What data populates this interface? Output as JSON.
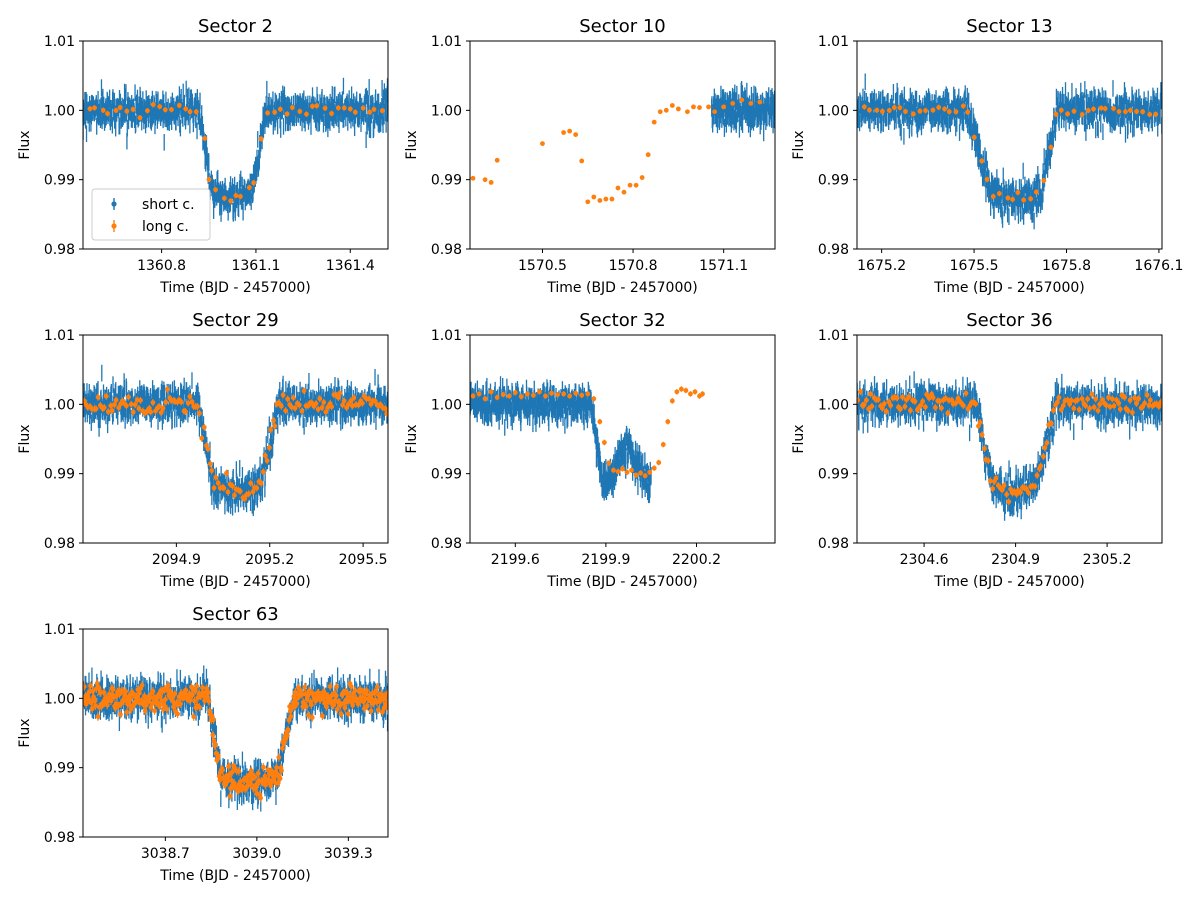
{
  "figure": {
    "shared_xlabel": "Time (BJD - 2457000)",
    "shared_ylabel": "Flux"
  },
  "colors": {
    "short": "#1f77b4",
    "long": "#ff7f0e"
  },
  "legend": {
    "placement": "lower-left",
    "panel": 0,
    "entries": [
      "short c.",
      "long c."
    ]
  },
  "chart_data": [
    {
      "type": "scatter",
      "title": "Sector 2",
      "xlabel": "Time (BJD - 2457000)",
      "ylabel": "Flux",
      "xlim": [
        1360.55,
        1361.52
      ],
      "ylim": [
        0.98,
        1.01
      ],
      "xticks": [
        1360.8,
        1361.1,
        1361.4
      ],
      "xtick_labels": [
        "1360.8",
        "1361.1",
        "1361.4"
      ],
      "yticks": [
        0.98,
        0.99,
        1.0,
        1.01
      ],
      "ytick_labels": [
        "0.98",
        "0.99",
        "1.00",
        "1.01"
      ],
      "transit": {
        "ingress": [
          1360.92,
          1360.96
        ],
        "egress": [
          1361.09,
          1361.13
        ],
        "depth": 0.0115,
        "hump": 0
      },
      "series": [
        {
          "name": "short c.",
          "kind": "short",
          "range": [
            1360.55,
            1361.52
          ],
          "n": 900,
          "scatter": 0.0011,
          "err": 0.0012
        },
        {
          "name": "long c.",
          "kind": "long",
          "range": [
            1360.56,
            1361.51
          ],
          "n": 47,
          "scatter": 0.0004,
          "err": 0.0004
        }
      ]
    },
    {
      "type": "scatter",
      "title": "Sector 10",
      "xlabel": "Time (BJD - 2457000)",
      "ylabel": "Flux",
      "xlim": [
        1570.26,
        1571.27
      ],
      "ylim": [
        0.98,
        1.01
      ],
      "xticks": [
        1570.5,
        1570.8,
        1571.1
      ],
      "xtick_labels": [
        "1570.5",
        "1570.8",
        "1571.1"
      ],
      "yticks": [
        0.98,
        0.99,
        1.0,
        1.01
      ],
      "ytick_labels": [
        "0.98",
        "0.99",
        "1.00",
        "1.01"
      ],
      "transit": null,
      "series": [
        {
          "name": "short c.",
          "kind": "short",
          "range": [
            1571.06,
            1571.27
          ],
          "n": 220,
          "scatter": 0.0012,
          "err": 0.0013
        },
        {
          "name": "long c.",
          "kind": "long",
          "err": 0.0003,
          "points": [
            [
              1570.27,
              0.9902
            ],
            [
              1570.31,
              0.99
            ],
            [
              1570.33,
              0.9896
            ],
            [
              1570.35,
              0.9928
            ],
            [
              1570.5,
              0.9952
            ],
            [
              1570.57,
              0.9968
            ],
            [
              1570.59,
              0.997
            ],
            [
              1570.61,
              0.9965
            ],
            [
              1570.63,
              0.9927
            ],
            [
              1570.65,
              0.9868
            ],
            [
              1570.67,
              0.9875
            ],
            [
              1570.69,
              0.987
            ],
            [
              1570.71,
              0.9872
            ],
            [
              1570.73,
              0.9872
            ],
            [
              1570.75,
              0.9888
            ],
            [
              1570.77,
              0.9882
            ],
            [
              1570.79,
              0.9892
            ],
            [
              1570.81,
              0.9892
            ],
            [
              1570.83,
              0.9903
            ],
            [
              1570.85,
              0.9936
            ],
            [
              1570.87,
              0.9983
            ],
            [
              1570.89,
              0.9998
            ],
            [
              1570.91,
              1.0
            ],
            [
              1570.93,
              1.0007
            ],
            [
              1570.95,
              1.0002
            ],
            [
              1570.98,
              0.9998
            ],
            [
              1571.0,
              1.0005
            ],
            [
              1571.02,
              1.0004
            ],
            [
              1571.05,
              1.0005
            ],
            [
              1571.07,
              0.9998
            ],
            [
              1571.1,
              1.0005
            ],
            [
              1571.13,
              1.001
            ],
            [
              1571.16,
              1.0015
            ],
            [
              1571.19,
              1.001
            ],
            [
              1571.22,
              1.0012
            ]
          ]
        }
      ]
    },
    {
      "type": "scatter",
      "title": "Sector 13",
      "xlabel": "Time (BJD - 2457000)",
      "ylabel": "Flux",
      "xlim": [
        1675.12,
        1676.11
      ],
      "ylim": [
        0.98,
        1.01
      ],
      "xticks": [
        1675.2,
        1675.5,
        1675.8,
        1676.1
      ],
      "xtick_labels": [
        "1675.2",
        "1675.5",
        "1675.8",
        "1676.1"
      ],
      "yticks": [
        0.98,
        0.99,
        1.0,
        1.01
      ],
      "ytick_labels": [
        "0.98",
        "0.99",
        "1.00",
        "1.01"
      ],
      "transit": {
        "ingress": [
          1675.48,
          1675.55
        ],
        "egress": [
          1675.72,
          1675.77
        ],
        "depth": 0.0115,
        "hump": 0
      },
      "series": [
        {
          "name": "short c.",
          "kind": "short",
          "range": [
            1675.12,
            1676.11
          ],
          "n": 900,
          "scatter": 0.0012,
          "err": 0.0012
        },
        {
          "name": "long c.",
          "kind": "long",
          "range": [
            1675.13,
            1676.1
          ],
          "n": 48,
          "scatter": 0.0004,
          "err": 0.0004
        }
      ]
    },
    {
      "type": "scatter",
      "title": "Sector 29",
      "xlabel": "Time (BJD - 2457000)",
      "ylabel": "Flux",
      "xlim": [
        2094.6,
        2095.58
      ],
      "ylim": [
        0.98,
        1.01
      ],
      "xticks": [
        2094.9,
        2095.2,
        2095.5
      ],
      "xtick_labels": [
        "2094.9",
        "2095.2",
        "2095.5"
      ],
      "yticks": [
        0.98,
        0.99,
        1.0,
        1.01
      ],
      "ytick_labels": [
        "0.98",
        "0.99",
        "1.00",
        "1.01"
      ],
      "transit": {
        "ingress": [
          2094.97,
          2095.02
        ],
        "egress": [
          2095.17,
          2095.23
        ],
        "depth": 0.0115,
        "hump": 0
      },
      "series": [
        {
          "name": "short c.",
          "kind": "short",
          "range": [
            2094.6,
            2095.58
          ],
          "n": 900,
          "scatter": 0.0012,
          "err": 0.0012
        },
        {
          "name": "long c.",
          "kind": "long",
          "range": [
            2094.6,
            2095.58
          ],
          "n": 150,
          "scatter": 0.0007,
          "err": 0.0005
        }
      ]
    },
    {
      "type": "scatter",
      "title": "Sector 32",
      "xlabel": "Time (BJD - 2457000)",
      "ylabel": "Flux",
      "xlim": [
        2199.45,
        2200.46
      ],
      "ylim": [
        0.98,
        1.01
      ],
      "xticks": [
        2199.6,
        2199.9,
        2200.2
      ],
      "xtick_labels": [
        "2199.6",
        "2199.9",
        "2200.2"
      ],
      "yticks": [
        0.98,
        0.99,
        1.0,
        1.01
      ],
      "ytick_labels": [
        "0.98",
        "0.99",
        "1.00",
        "1.01"
      ],
      "transit": {
        "ingress": [
          2199.85,
          2199.89
        ],
        "egress": [
          2200.05,
          2200.1
        ],
        "depth": 0.0115,
        "hump": 0.007
      },
      "series": [
        {
          "name": "short c.",
          "kind": "short",
          "range": [
            2199.45,
            2200.05
          ],
          "n": 650,
          "scatter": 0.0011,
          "err": 0.0012
        },
        {
          "name": "long c.",
          "kind": "long",
          "err": 0.0004,
          "points": [
            [
              2199.46,
              1.0012
            ],
            [
              2199.48,
              1.0015
            ],
            [
              2199.5,
              1.0008
            ],
            [
              2199.52,
              1.0018
            ],
            [
              2199.54,
              1.001
            ],
            [
              2199.56,
              1.0014
            ],
            [
              2199.58,
              1.0012
            ],
            [
              2199.6,
              1.0017
            ],
            [
              2199.62,
              1.0011
            ],
            [
              2199.64,
              1.0015
            ],
            [
              2199.66,
              1.0013
            ],
            [
              2199.68,
              1.0018
            ],
            [
              2199.7,
              1.0012
            ],
            [
              2199.72,
              1.0016
            ],
            [
              2199.74,
              1.0014
            ],
            [
              2199.76,
              1.0015
            ],
            [
              2199.78,
              1.0012
            ],
            [
              2199.8,
              1.0016
            ],
            [
              2199.82,
              1.0013
            ],
            [
              2199.84,
              1.0015
            ],
            [
              2199.86,
              1.0008
            ],
            [
              2199.88,
              0.9975
            ],
            [
              2199.895,
              0.9945
            ],
            [
              2199.91,
              0.9915
            ],
            [
              2199.925,
              0.9905
            ],
            [
              2199.94,
              0.9903
            ],
            [
              2199.955,
              0.9907
            ],
            [
              2199.97,
              0.9902
            ],
            [
              2199.985,
              0.9905
            ],
            [
              2200.0,
              0.9898
            ],
            [
              2200.015,
              0.9901
            ],
            [
              2200.03,
              0.9897
            ],
            [
              2200.045,
              0.9902
            ],
            [
              2200.06,
              0.9908
            ],
            [
              2200.075,
              0.9916
            ],
            [
              2200.09,
              0.9942
            ],
            [
              2200.105,
              0.9975
            ],
            [
              2200.12,
              1.0005
            ],
            [
              2200.135,
              1.0018
            ],
            [
              2200.15,
              1.0022
            ],
            [
              2200.165,
              1.002
            ],
            [
              2200.18,
              1.0015
            ],
            [
              2200.195,
              1.0018
            ],
            [
              2200.21,
              1.0012
            ],
            [
              2200.22,
              1.0015
            ]
          ]
        }
      ]
    },
    {
      "type": "scatter",
      "title": "Sector 36",
      "xlabel": "Time (BJD - 2457000)",
      "ylabel": "Flux",
      "xlim": [
        2304.38,
        2305.38
      ],
      "ylim": [
        0.98,
        1.01
      ],
      "xticks": [
        2304.6,
        2304.9,
        2305.2
      ],
      "xtick_labels": [
        "2304.6",
        "2304.9",
        "2305.2"
      ],
      "yticks": [
        0.98,
        0.99,
        1.0,
        1.01
      ],
      "ytick_labels": [
        "0.98",
        "0.99",
        "1.00",
        "1.01"
      ],
      "transit": {
        "ingress": [
          2304.77,
          2304.82
        ],
        "egress": [
          2304.97,
          2305.03
        ],
        "depth": 0.0115,
        "hump": 0
      },
      "series": [
        {
          "name": "short c.",
          "kind": "short",
          "range": [
            2304.38,
            2305.38
          ],
          "n": 900,
          "scatter": 0.0012,
          "err": 0.0012
        },
        {
          "name": "long c.",
          "kind": "long",
          "range": [
            2304.38,
            2305.38
          ],
          "n": 150,
          "scatter": 0.0007,
          "err": 0.0005
        }
      ]
    },
    {
      "type": "scatter",
      "title": "Sector 63",
      "xlabel": "Time (BJD - 2457000)",
      "ylabel": "Flux",
      "xlim": [
        3038.43,
        3039.43
      ],
      "ylim": [
        0.98,
        1.01
      ],
      "xticks": [
        3038.7,
        3039.0,
        3039.3
      ],
      "xtick_labels": [
        "3038.7",
        "3039.0",
        "3039.3"
      ],
      "yticks": [
        0.98,
        0.99,
        1.0,
        1.01
      ],
      "ytick_labels": [
        "0.98",
        "0.99",
        "1.00",
        "1.01"
      ],
      "transit": {
        "ingress": [
          3038.84,
          3038.88
        ],
        "egress": [
          3039.07,
          3039.12
        ],
        "depth": 0.011,
        "hump": 0
      },
      "series": [
        {
          "name": "short c.",
          "kind": "short",
          "range": [
            3038.43,
            3039.43
          ],
          "n": 900,
          "scatter": 0.0012,
          "err": 0.0012
        },
        {
          "name": "long c.",
          "kind": "long",
          "range": [
            3038.43,
            3039.43
          ],
          "n": 420,
          "scatter": 0.0009,
          "err": 0.0006
        }
      ]
    }
  ]
}
